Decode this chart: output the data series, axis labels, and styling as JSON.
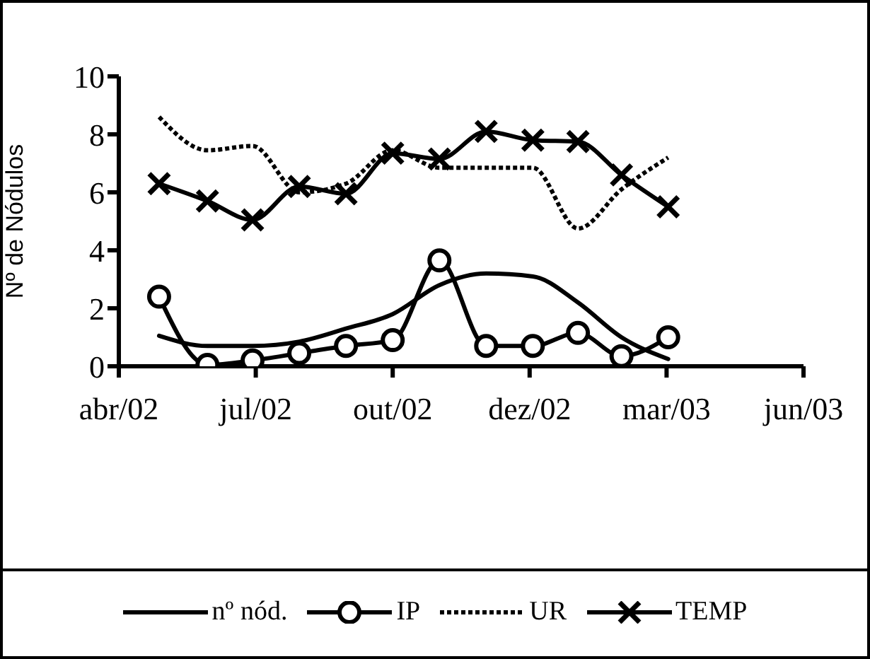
{
  "chart_data": {
    "type": "line",
    "ylabel": "Nº de Nódulos",
    "x": [
      "2002-05-10",
      "2002-06-09",
      "2002-07-07",
      "2002-08-05",
      "2002-09-03",
      "2002-10-02",
      "2002-10-31",
      "2002-11-29",
      "2002-12-28",
      "2003-01-25",
      "2003-02-21",
      "2003-03-22"
    ],
    "series": [
      {
        "name": "nº nód.",
        "color": "#000000",
        "marker": "none",
        "line_style": "solid",
        "values": [
          1.05,
          0.7,
          0.7,
          0.85,
          1.3,
          1.8,
          2.8,
          3.2,
          3.1,
          2.2,
          1.0,
          0.25
        ]
      },
      {
        "name": "IP",
        "color": "#000000",
        "marker": "circle",
        "line_style": "solid",
        "values": [
          2.4,
          0.05,
          0.2,
          0.45,
          0.7,
          0.9,
          3.65,
          0.7,
          0.7,
          1.15,
          0.35,
          1.0
        ]
      },
      {
        "name": "UR",
        "color": "#000000",
        "marker": "none",
        "line_style": "dotted",
        "values": [
          8.6,
          7.45,
          7.6,
          6.0,
          6.3,
          7.45,
          6.85,
          6.85,
          6.85,
          4.75,
          6.1,
          7.2
        ]
      },
      {
        "name": "TEMP",
        "color": "#000000",
        "marker": "cross",
        "line_style": "solid",
        "values": [
          6.3,
          5.7,
          5.05,
          6.2,
          5.95,
          7.35,
          7.15,
          8.1,
          7.8,
          7.75,
          6.6,
          5.5
        ]
      }
    ],
    "ylim": [
      0,
      10
    ],
    "yticks": [
      0,
      2,
      4,
      6,
      8,
      10
    ],
    "xlim": [
      "2002-04-15",
      "2003-06-14"
    ],
    "xticks": [
      {
        "value": "2002-04-15",
        "label": "abr/02"
      },
      {
        "value": "2002-07-09",
        "label": "jul/02"
      },
      {
        "value": "2002-10-02",
        "label": "out/02"
      },
      {
        "value": "2002-12-26",
        "label": "dez/02"
      },
      {
        "value": "2003-03-21",
        "label": "mar/03"
      },
      {
        "value": "2003-06-14",
        "label": "jun/03"
      }
    ],
    "grid": false,
    "legend": "bottom"
  }
}
